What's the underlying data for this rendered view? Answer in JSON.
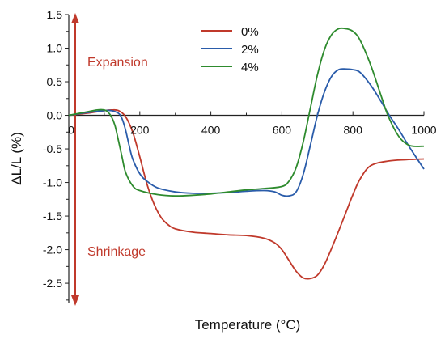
{
  "chart_data": {
    "type": "line",
    "title": "",
    "xlabel": "Temperature (°C)",
    "ylabel": "ΔL/L (%)",
    "xlim": [
      0,
      1000
    ],
    "ylim": [
      -2.8,
      1.5
    ],
    "xticks": [
      0,
      200,
      400,
      600,
      800,
      1000
    ],
    "yticks": [
      -2.5,
      -2.0,
      -1.5,
      -1.0,
      -0.5,
      0.0,
      0.5,
      1.0,
      1.5
    ],
    "xtick_labels": [
      "0",
      "200",
      "400",
      "600",
      "800",
      "1000"
    ],
    "ytick_labels": [
      "-2.5",
      "-2.0",
      "-1.5",
      "-1.0",
      "-0.5",
      "0.0",
      "0.5",
      "1.0",
      "1.5"
    ],
    "grid": false,
    "legend_position": "top-center",
    "annotations": [
      {
        "text": "Expansion",
        "color": "#c0392b"
      },
      {
        "text": "Shrinkage",
        "color": "#c0392b"
      }
    ],
    "arrow_color": "#c0392b",
    "series": [
      {
        "name": "0%",
        "color": "#c0392b",
        "x": [
          0,
          50,
          100,
          120,
          140,
          160,
          180,
          200,
          220,
          240,
          260,
          280,
          300,
          350,
          400,
          450,
          500,
          550,
          580,
          600,
          620,
          640,
          660,
          680,
          700,
          720,
          740,
          760,
          780,
          800,
          820,
          850,
          900,
          950,
          1000
        ],
        "y": [
          0.0,
          0.03,
          0.07,
          0.08,
          0.07,
          -0.02,
          -0.25,
          -0.62,
          -1.02,
          -1.32,
          -1.52,
          -1.63,
          -1.69,
          -1.74,
          -1.76,
          -1.78,
          -1.79,
          -1.83,
          -1.9,
          -2.0,
          -2.16,
          -2.32,
          -2.42,
          -2.43,
          -2.38,
          -2.22,
          -1.98,
          -1.72,
          -1.45,
          -1.18,
          -0.95,
          -0.75,
          -0.68,
          -0.66,
          -0.65
        ]
      },
      {
        "name": "2%",
        "color": "#2a5caa",
        "x": [
          0,
          50,
          100,
          120,
          140,
          150,
          160,
          170,
          180,
          200,
          220,
          250,
          300,
          350,
          400,
          450,
          500,
          550,
          580,
          600,
          620,
          640,
          660,
          680,
          700,
          720,
          740,
          760,
          780,
          800,
          820,
          850,
          880,
          900,
          930,
          960,
          1000
        ],
        "y": [
          0.0,
          0.04,
          0.07,
          0.07,
          0.03,
          -0.05,
          -0.22,
          -0.45,
          -0.65,
          -0.87,
          -0.98,
          -1.08,
          -1.14,
          -1.16,
          -1.16,
          -1.15,
          -1.13,
          -1.12,
          -1.14,
          -1.19,
          -1.2,
          -1.14,
          -0.88,
          -0.45,
          0.0,
          0.35,
          0.58,
          0.68,
          0.69,
          0.68,
          0.64,
          0.45,
          0.2,
          0.02,
          -0.22,
          -0.48,
          -0.8
        ]
      },
      {
        "name": "4%",
        "color": "#2e8b2e",
        "x": [
          0,
          50,
          80,
          100,
          110,
          120,
          130,
          140,
          150,
          160,
          180,
          200,
          250,
          300,
          350,
          400,
          450,
          500,
          550,
          600,
          620,
          640,
          660,
          680,
          700,
          720,
          740,
          760,
          780,
          800,
          820,
          850,
          880,
          900,
          930,
          960,
          1000
        ],
        "y": [
          0.0,
          0.05,
          0.08,
          0.08,
          0.05,
          -0.02,
          -0.15,
          -0.38,
          -0.62,
          -0.85,
          -1.05,
          -1.12,
          -1.18,
          -1.2,
          -1.19,
          -1.17,
          -1.14,
          -1.11,
          -1.09,
          -1.06,
          -0.98,
          -0.78,
          -0.4,
          0.1,
          0.6,
          0.98,
          1.2,
          1.29,
          1.29,
          1.25,
          1.12,
          0.75,
          0.28,
          -0.02,
          -0.32,
          -0.45,
          -0.46
        ]
      }
    ]
  }
}
